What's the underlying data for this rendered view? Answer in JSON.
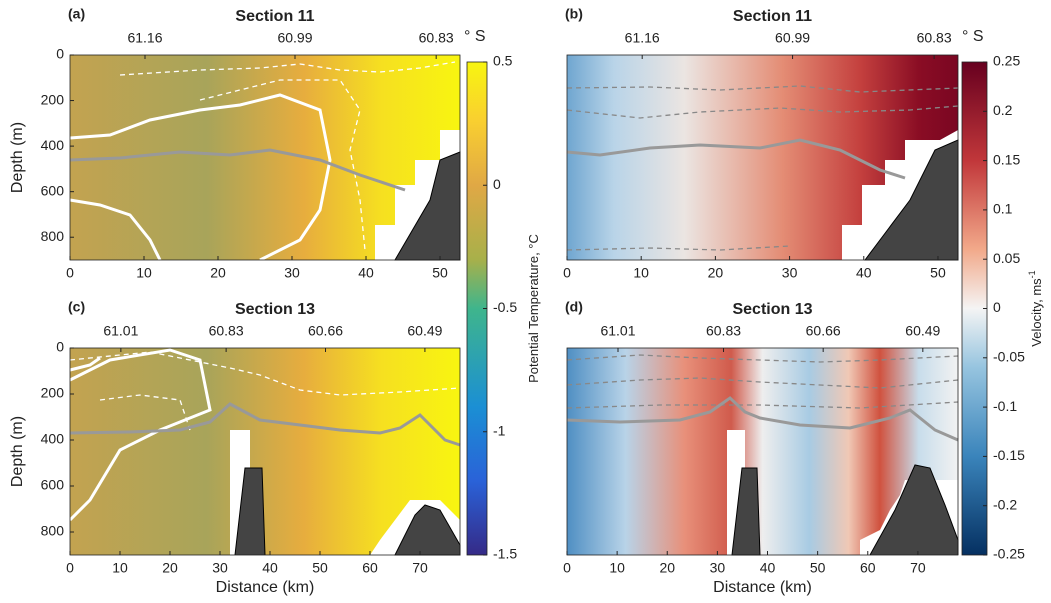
{
  "chart_data": [
    {
      "type": "contour",
      "panel": "(a)",
      "title": "Section 11",
      "colormap": "temperature",
      "ylabel": "Depth (m)",
      "xlim": [
        0,
        52.7
      ],
      "xticks": [
        0,
        10,
        20,
        30,
        40,
        50
      ],
      "ylim": [
        900,
        0
      ],
      "yticks": [
        0,
        200,
        400,
        600,
        800
      ],
      "x2lim": [
        61.245,
        60.803
      ],
      "x2ticks": [
        61.16,
        60.99,
        60.83
      ],
      "x2_unit": "° S"
    },
    {
      "type": "contour",
      "panel": "(b)",
      "title": "Section 11",
      "colormap": "velocity",
      "xlim": [
        0,
        52.7
      ],
      "xticks": [
        0,
        10,
        20,
        30,
        40,
        50
      ],
      "ylim": [
        900,
        0
      ],
      "yticks": [],
      "x2lim": [
        61.245,
        60.803
      ],
      "x2ticks": [
        61.16,
        60.99,
        60.83
      ],
      "x2_unit": "° S"
    },
    {
      "type": "contour",
      "panel": "(c)",
      "title": "Section 13",
      "colormap": "temperature",
      "ylabel": "Depth (m)",
      "xlabel": "Distance (km)",
      "xlim": [
        0,
        78
      ],
      "xticks": [
        0,
        10,
        20,
        30,
        40,
        50,
        60,
        70
      ],
      "ylim": [
        900,
        0
      ],
      "yticks": [
        0,
        200,
        400,
        600,
        800
      ],
      "x2lim": [
        61.097,
        60.43
      ],
      "x2ticks": [
        61.01,
        60.83,
        60.66,
        60.49
      ]
    },
    {
      "type": "contour",
      "panel": "(d)",
      "title": "Section 13",
      "colormap": "velocity",
      "xlabel": "Distance (km)",
      "xlim": [
        0,
        78
      ],
      "xticks": [
        0,
        10,
        20,
        30,
        40,
        50,
        60,
        70
      ],
      "ylim": [
        900,
        0
      ],
      "yticks": [],
      "x2lim": [
        61.097,
        60.43
      ],
      "x2ticks": [
        61.01,
        60.83,
        60.66,
        60.49
      ]
    },
    {
      "type": "colorbar",
      "colormap": "temperature",
      "label": "Potential Temperature, °C",
      "ylim": [
        -1.5,
        0.5
      ],
      "yticks": [
        0.5,
        0,
        -0.5,
        -1,
        -1.5
      ]
    },
    {
      "type": "colorbar",
      "colormap": "velocity",
      "label": "Velocity, ms",
      "label_sup": "-1",
      "ylim": [
        -0.25,
        0.25
      ],
      "yticks": [
        0.25,
        0.2,
        0.15,
        0.1,
        0.05,
        0,
        -0.05,
        -0.1,
        -0.15,
        -0.2,
        -0.25
      ]
    }
  ]
}
